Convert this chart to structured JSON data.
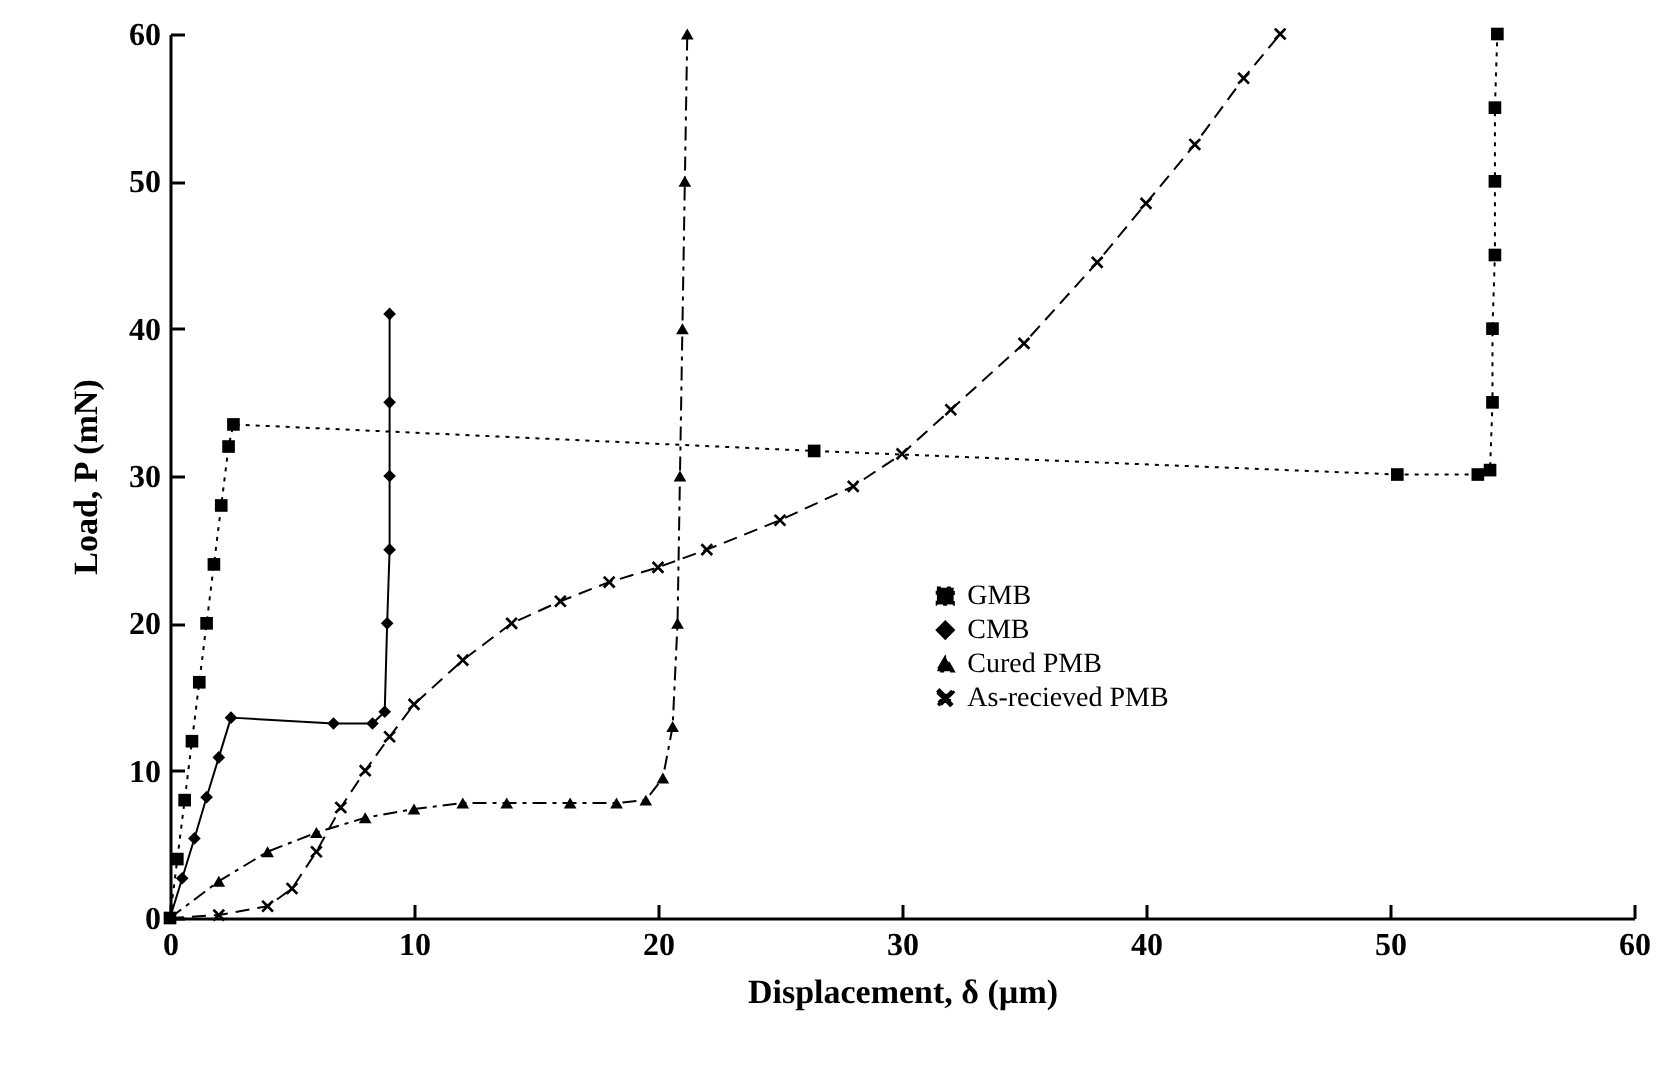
{
  "chart_data": {
    "type": "line",
    "xlabel": "Displacement, δ (µm)",
    "ylabel": "Load, P (mN)",
    "xlim": [
      0,
      60
    ],
    "ylim": [
      0,
      60
    ],
    "xticks": [
      0,
      10,
      20,
      30,
      40,
      50,
      60
    ],
    "yticks": [
      0,
      10,
      20,
      30,
      40,
      50,
      60
    ],
    "grid": false,
    "legend": "bottom right",
    "series": [
      {
        "name": "GMB",
        "color": "#000000",
        "marker": "square",
        "line_style": "dotted",
        "x": [
          0,
          0.3,
          0.6,
          0.9,
          1.2,
          1.5,
          1.8,
          2.1,
          2.4,
          2.6,
          26.4,
          50.3,
          53.6,
          54.1,
          54.2,
          54.2,
          54.3,
          54.3,
          54.3,
          54.4
        ],
        "values": [
          0,
          4,
          8,
          12,
          16,
          20,
          24,
          28,
          32,
          33.5,
          31.7,
          30.1,
          30.1,
          30.4,
          35,
          40,
          45,
          50,
          55,
          60
        ]
      },
      {
        "name": "CMB",
        "color": "#000000",
        "marker": "diamond",
        "line_style": "solid",
        "x": [
          0,
          0.5,
          1,
          1.5,
          2,
          2.5,
          6.7,
          8.3,
          8.8,
          8.9,
          9,
          9,
          9,
          9
        ],
        "values": [
          0,
          2.7,
          5.4,
          8.2,
          10.9,
          13.6,
          13.2,
          13.2,
          14,
          20,
          25,
          30,
          35,
          41
        ]
      },
      {
        "name": "Cured PMB",
        "color": "#000000",
        "marker": "triangle",
        "line_style": "dashdot",
        "x": [
          0,
          2,
          4,
          6,
          8,
          10,
          12,
          13.8,
          16.4,
          18.3,
          19.5,
          20.2,
          20.6,
          20.8,
          20.9,
          21,
          21.1,
          21.2
        ],
        "values": [
          0,
          2.5,
          4.5,
          5.8,
          6.8,
          7.4,
          7.8,
          7.8,
          7.8,
          7.8,
          8,
          9.5,
          13,
          20,
          30,
          40,
          50,
          60
        ]
      },
      {
        "name": "As-recieved PMB",
        "color": "#000000",
        "marker": "cross",
        "line_style": "dashed",
        "x": [
          0,
          2,
          4,
          5,
          6,
          7,
          8,
          9,
          10,
          12,
          14,
          16,
          18,
          20,
          22,
          25,
          28,
          30,
          32,
          35,
          38,
          40,
          42,
          44,
          45.5
        ],
        "values": [
          0,
          0.2,
          0.8,
          2,
          4.5,
          7.5,
          10,
          12.3,
          14.5,
          17.5,
          20,
          21.5,
          22.8,
          23.8,
          25,
          27,
          29.3,
          31.5,
          34.5,
          39,
          44.5,
          48.5,
          52.5,
          57,
          60
        ]
      }
    ]
  }
}
